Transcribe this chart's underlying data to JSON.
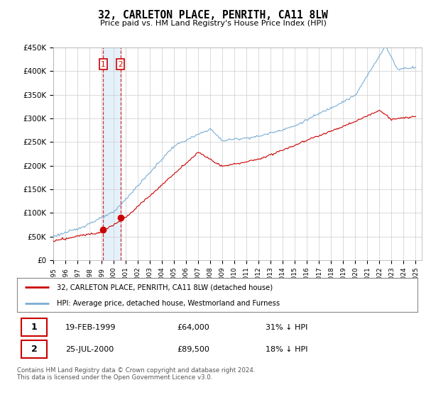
{
  "title": "32, CARLETON PLACE, PENRITH, CA11 8LW",
  "subtitle": "Price paid vs. HM Land Registry's House Price Index (HPI)",
  "ylim": [
    0,
    450000
  ],
  "xlim_start": 1995.0,
  "xlim_end": 2025.5,
  "hpi_color": "#7aadd4",
  "price_color": "#cc0000",
  "transaction1_date": "19-FEB-1999",
  "transaction1_price": 64000,
  "transaction1_label": "31% ↓ HPI",
  "transaction1_year": 1999.13,
  "transaction2_date": "25-JUL-2000",
  "transaction2_price": 89500,
  "transaction2_label": "18% ↓ HPI",
  "transaction2_year": 2000.56,
  "legend_label1": "32, CARLETON PLACE, PENRITH, CA11 8LW (detached house)",
  "legend_label2": "HPI: Average price, detached house, Westmorland and Furness",
  "footer": "Contains HM Land Registry data © Crown copyright and database right 2024.\nThis data is licensed under the Open Government Licence v3.0.",
  "background_color": "#ffffff",
  "grid_color": "#cccccc"
}
